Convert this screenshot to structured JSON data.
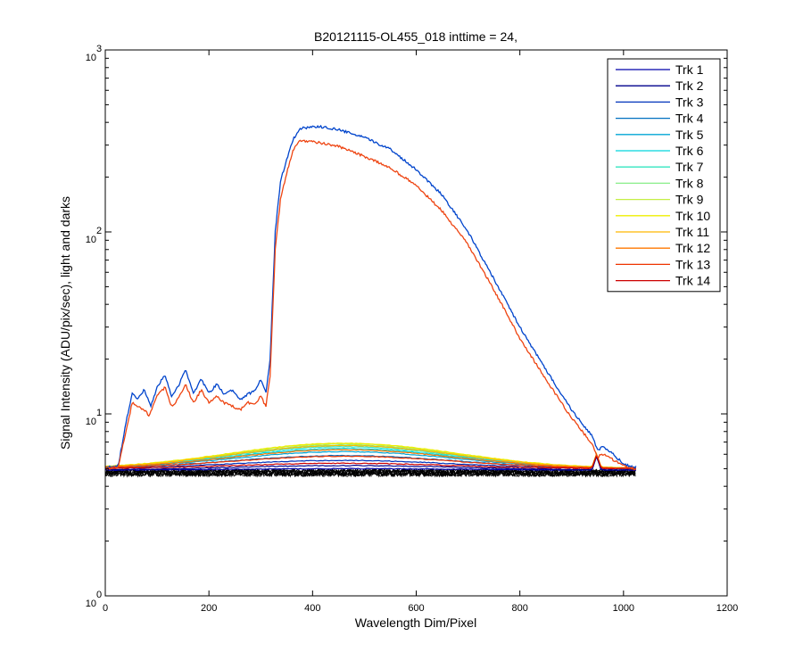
{
  "chart_data": {
    "type": "line",
    "title": "B20121115-OL455_018 inttime = 24,",
    "xlabel": "Wavelength Dim/Pixel",
    "ylabel": "Signal Intensity (ADU/pix/sec), light and darks",
    "xlim": [
      0,
      1200
    ],
    "ylim": [
      1,
      1000
    ],
    "y_scale": "log",
    "x_ticks": [
      "0",
      "200",
      "400",
      "600",
      "800",
      "1000",
      "1200"
    ],
    "y_ticks": [
      {
        "base": "10",
        "exp": "0"
      },
      {
        "base": "10",
        "exp": "1"
      },
      {
        "base": "10",
        "exp": "2"
      },
      {
        "base": "10",
        "exp": "3"
      }
    ],
    "grid": false,
    "legend_position": "top-right",
    "series": [
      {
        "name": "Trk 1",
        "color": "#0000aa",
        "shape": "plateau",
        "level": 5.0
      },
      {
        "name": "Trk 2",
        "color": "#00008b",
        "shape": "plateau",
        "level": 5.2
      },
      {
        "name": "Trk 3",
        "color": "#0033bb",
        "shape": "hump",
        "level": 5.55
      },
      {
        "name": "Trk 4",
        "color": "#0070c0",
        "shape": "hump",
        "level": 5.9
      },
      {
        "name": "Trk 5",
        "color": "#00a6d6",
        "shape": "hump",
        "level": 6.2
      },
      {
        "name": "Trk 6",
        "color": "#00d5dd",
        "shape": "hump",
        "level": 6.45
      },
      {
        "name": "Trk 7",
        "color": "#33e6c0",
        "shape": "hump",
        "level": 6.6
      },
      {
        "name": "Trk 8",
        "color": "#88ee88",
        "shape": "hump",
        "level": 6.75
      },
      {
        "name": "Trk 9",
        "color": "#c4ee44",
        "shape": "hump",
        "level": 6.85
      },
      {
        "name": "Trk 10",
        "color": "#eeee00",
        "shape": "hump",
        "level": 6.9
      },
      {
        "name": "Trk 11",
        "color": "#ffb800",
        "shape": "hump",
        "level": 6.7
      },
      {
        "name": "Trk 12",
        "color": "#ff7700",
        "shape": "hump",
        "level": 6.35
      },
      {
        "name": "Trk 13",
        "color": "#ee3300",
        "shape": "hump",
        "level": 5.85
      },
      {
        "name": "Trk 14",
        "color": "#cc0000",
        "shape": "hump",
        "level": 5.35
      }
    ],
    "light_curves": [
      {
        "color": "#0044cc",
        "points": [
          [
            0,
            5.1
          ],
          [
            25,
            5.2
          ],
          [
            40,
            9.0
          ],
          [
            52,
            13.0
          ],
          [
            62,
            12.2
          ],
          [
            75,
            13.5
          ],
          [
            88,
            11.0
          ],
          [
            100,
            14.0
          ],
          [
            115,
            16.5
          ],
          [
            128,
            12.5
          ],
          [
            140,
            14.0
          ],
          [
            155,
            17.5
          ],
          [
            170,
            13.0
          ],
          [
            185,
            15.5
          ],
          [
            200,
            13.0
          ],
          [
            215,
            14.5
          ],
          [
            230,
            12.8
          ],
          [
            245,
            13.5
          ],
          [
            260,
            12.0
          ],
          [
            275,
            12.8
          ],
          [
            290,
            13.5
          ],
          [
            300,
            15.5
          ],
          [
            310,
            13.0
          ],
          [
            318,
            20.0
          ],
          [
            328,
            100.0
          ],
          [
            338,
            190.0
          ],
          [
            350,
            250.0
          ],
          [
            362,
            320.0
          ],
          [
            375,
            370.0
          ],
          [
            390,
            375.0
          ],
          [
            410,
            380.0
          ],
          [
            450,
            365.0
          ],
          [
            500,
            330.0
          ],
          [
            550,
            285.0
          ],
          [
            600,
            220.0
          ],
          [
            650,
            160.0
          ],
          [
            700,
            100.0
          ],
          [
            750,
            55.0
          ],
          [
            800,
            30.0
          ],
          [
            850,
            17.5
          ],
          [
            900,
            10.5
          ],
          [
            940,
            7.5
          ],
          [
            950,
            6.3
          ],
          [
            960,
            6.6
          ],
          [
            980,
            6.0
          ],
          [
            1000,
            5.3
          ],
          [
            1020,
            5.1
          ]
        ]
      },
      {
        "color": "#ee4411",
        "points": [
          [
            0,
            5.0
          ],
          [
            25,
            5.1
          ],
          [
            40,
            8.0
          ],
          [
            52,
            11.5
          ],
          [
            62,
            11.0
          ],
          [
            75,
            10.5
          ],
          [
            85,
            9.8
          ],
          [
            100,
            12.5
          ],
          [
            115,
            14.0
          ],
          [
            128,
            11.0
          ],
          [
            140,
            12.0
          ],
          [
            155,
            14.5
          ],
          [
            170,
            11.5
          ],
          [
            185,
            13.5
          ],
          [
            200,
            11.5
          ],
          [
            215,
            12.5
          ],
          [
            230,
            11.5
          ],
          [
            245,
            11.0
          ],
          [
            260,
            10.5
          ],
          [
            275,
            11.5
          ],
          [
            290,
            11.5
          ],
          [
            300,
            12.5
          ],
          [
            310,
            11.0
          ],
          [
            318,
            16.0
          ],
          [
            328,
            80.0
          ],
          [
            338,
            150.0
          ],
          [
            350,
            210.0
          ],
          [
            362,
            280.0
          ],
          [
            375,
            320.0
          ],
          [
            390,
            315.0
          ],
          [
            410,
            310.0
          ],
          [
            450,
            295.0
          ],
          [
            500,
            260.0
          ],
          [
            550,
            225.0
          ],
          [
            600,
            180.0
          ],
          [
            650,
            130.0
          ],
          [
            700,
            85.0
          ],
          [
            750,
            48.0
          ],
          [
            800,
            26.0
          ],
          [
            850,
            15.5
          ],
          [
            900,
            9.5
          ],
          [
            940,
            6.8
          ],
          [
            950,
            5.8
          ],
          [
            960,
            6.0
          ],
          [
            980,
            5.6
          ],
          [
            1000,
            5.2
          ],
          [
            1020,
            5.0
          ]
        ]
      }
    ]
  }
}
